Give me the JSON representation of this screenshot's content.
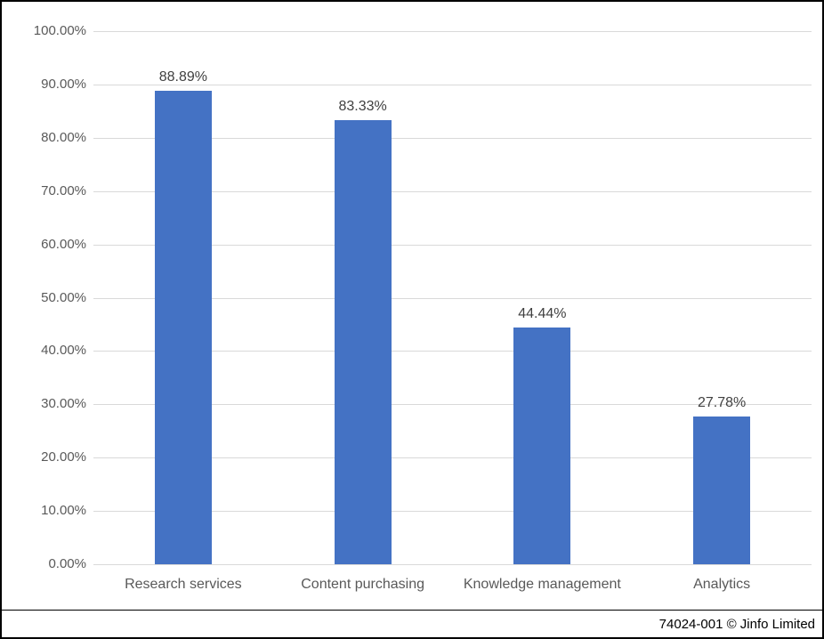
{
  "chart_data": {
    "type": "bar",
    "title": "",
    "xlabel": "",
    "ylabel": "",
    "categories": [
      "Research services",
      "Content purchasing",
      "Knowledge management",
      "Analytics"
    ],
    "values": [
      88.89,
      83.33,
      44.44,
      27.78
    ],
    "value_labels": [
      "88.89%",
      "83.33%",
      "44.44%",
      "27.78%"
    ],
    "ylim": [
      0,
      100
    ],
    "ytick_step": 10,
    "ytick_labels": [
      "100.00%",
      "90.00%",
      "80.00%",
      "70.00%",
      "60.00%",
      "50.00%",
      "40.00%",
      "30.00%",
      "20.00%",
      "10.00%",
      "0.00%"
    ],
    "grid": true,
    "legend": false,
    "colors": {
      "bar": "#4472c4",
      "gridline": "#d9d9d9",
      "axis_labels": "#595959",
      "data_labels": "#404040",
      "footer_text": "#000000",
      "border": "#000000"
    }
  },
  "footer": {
    "credit": "74024-001 © Jinfo Limited"
  }
}
